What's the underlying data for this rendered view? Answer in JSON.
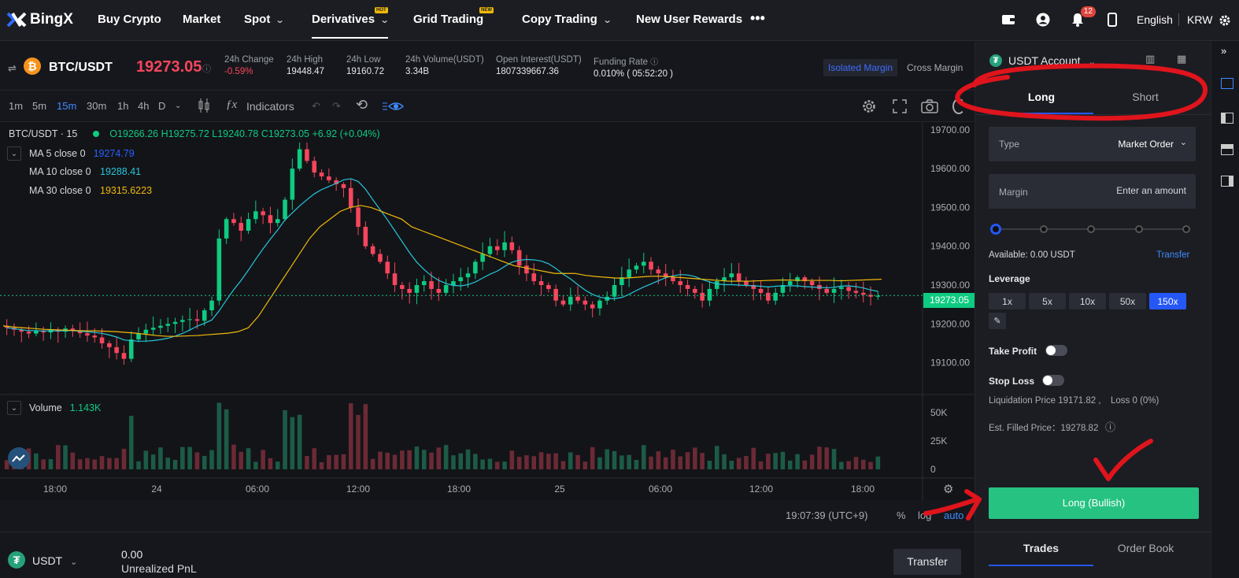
{
  "nav": {
    "brand": "BingX",
    "items": [
      {
        "label": "Buy Crypto"
      },
      {
        "label": "Market"
      },
      {
        "label": "Spot"
      },
      {
        "label": "Derivatives",
        "tag": "HOT"
      },
      {
        "label": "Grid Trading",
        "tag": "NEW"
      },
      {
        "label": "Copy Trading"
      },
      {
        "label": "New User Rewards"
      }
    ],
    "more": "•••",
    "notifications": "12",
    "language": "English",
    "currency": "KRW"
  },
  "ticker": {
    "pair": "BTC/USDT",
    "price": "19273.05",
    "stats": [
      {
        "label": "24h Change",
        "value": "-0.59%"
      },
      {
        "label": "24h High",
        "value": "19448.47"
      },
      {
        "label": "24h Low",
        "value": "19160.72"
      },
      {
        "label": "24h Volume(USDT)",
        "value": "3.34B"
      },
      {
        "label": "Open Interest(USDT)",
        "value": "1807339667.36"
      },
      {
        "label": "Funding Rate",
        "value": "0.010%  ( 05:52:20 )"
      }
    ],
    "margin_modes": [
      "Isolated Margin",
      "Cross Margin"
    ]
  },
  "toolbar": {
    "timeframes": [
      "1m",
      "5m",
      "15m",
      "30m",
      "1h",
      "4h",
      "D"
    ],
    "active_timeframe": "15m",
    "indicators": "Indicators"
  },
  "chart": {
    "header": "BTC/USDT · 15",
    "ohlc": {
      "o": "O19266.26",
      "h": "H19275.72",
      "l": "L19240.78",
      "c": "C19273.05",
      "chg": "+6.92 (+0.04%)"
    },
    "ma": [
      {
        "label": "MA 5 close 0",
        "value": "19274.79",
        "color": "#2962ff"
      },
      {
        "label": "MA 10 close 0",
        "value": "19288.41",
        "color": "#26c6da"
      },
      {
        "label": "MA 30 close 0",
        "value": "19315.6223",
        "color": "#f0b90b"
      }
    ],
    "price_label": "19273.05",
    "volume_label": "Volume",
    "volume_value": "1.143K",
    "time": "19:07:39 (UTC+9)",
    "scale_opts": [
      "%",
      "log",
      "auto"
    ]
  },
  "chart_data": {
    "type": "candlestick",
    "pair": "BTC/USDT",
    "interval": "15",
    "y_ticks": [
      19700,
      19600,
      19500,
      19400,
      19300,
      19200,
      19100
    ],
    "ylim": [
      19020,
      19720
    ],
    "x_ticks": [
      "18:00",
      "24",
      "06:00",
      "12:00",
      "18:00",
      "25",
      "06:00",
      "12:00",
      "18:00"
    ],
    "last_price": 19273.05,
    "close_series": [
      19190,
      19185,
      19180,
      19175,
      19182,
      19178,
      19185,
      19180,
      19188,
      19182,
      19176,
      19170,
      19165,
      19150,
      19140,
      19125,
      19110,
      19160,
      19175,
      19185,
      19190,
      19195,
      19200,
      19205,
      19210,
      19212,
      19208,
      19235,
      19260,
      19420,
      19470,
      19460,
      19440,
      19470,
      19490,
      19480,
      19460,
      19470,
      19520,
      19600,
      19650,
      19620,
      19590,
      19580,
      19570,
      19560,
      19550,
      19500,
      19450,
      19400,
      19380,
      19360,
      19330,
      19300,
      19290,
      19280,
      19300,
      19310,
      19290,
      19280,
      19300,
      19310,
      19320,
      19330,
      19360,
      19380,
      19400,
      19390,
      19410,
      19390,
      19350,
      19330,
      19310,
      19300,
      19290,
      19260,
      19250,
      19270,
      19260,
      19250,
      19240,
      19260,
      19270,
      19300,
      19320,
      19340,
      19350,
      19360,
      19340,
      19330,
      19320,
      19310,
      19300,
      19290,
      19280,
      19260,
      19290,
      19310,
      19320,
      19330,
      19310,
      19300,
      19290,
      19280,
      19260,
      19280,
      19300,
      19310,
      19320,
      19310,
      19300,
      19290,
      19280,
      19290,
      19295,
      19285,
      19280,
      19275,
      19270,
      19273
    ],
    "ma30_series": [
      19195,
      19192,
      19190,
      19188,
      19186,
      19185,
      19184,
      19183,
      19182,
      19182,
      19181,
      19180,
      19178,
      19176,
      19173,
      19170,
      19168,
      19168,
      19169,
      19170,
      19172,
      19174,
      19176,
      19180,
      19190,
      19220,
      19260,
      19300,
      19340,
      19380,
      19420,
      19450,
      19470,
      19490,
      19500,
      19505,
      19500,
      19490,
      19480,
      19470,
      19450,
      19440,
      19430,
      19420,
      19410,
      19400,
      19390,
      19380,
      19370,
      19360,
      19350,
      19345,
      19340,
      19335,
      19330,
      19330,
      19330,
      19325,
      19322,
      19320,
      19318,
      19318,
      19320,
      19322,
      19323,
      19322,
      19320,
      19318,
      19316,
      19314,
      19312,
      19310,
      19310,
      19310,
      19311,
      19312,
      19313,
      19313,
      19312,
      19312,
      19312,
      19312,
      19311,
      19312,
      19313,
      19314,
      19315
    ],
    "volume_ticks": [
      "50K",
      "25K",
      "0"
    ]
  },
  "panel": {
    "account": "USDT Account",
    "tabs": [
      "Long",
      "Short"
    ],
    "active_tab": "Long",
    "type_label": "Type",
    "type_value": "Market Order",
    "margin_label": "Margin",
    "margin_placeholder": "Enter an amount",
    "available": "Available: 0.00 USDT",
    "transfer": "Transfer",
    "leverage_label": "Leverage",
    "leverage_opts": [
      "1x",
      "5x",
      "10x",
      "50x",
      "150x"
    ],
    "leverage_selected": "150x",
    "take_profit": "Take Profit",
    "stop_loss": "Stop Loss",
    "liquidation": "Liquidation Price 19171.82 ,",
    "loss": "Loss 0 (0%)",
    "est_filled": "Est. Filled Price：19278.82",
    "long_button": "Long (Bullish)",
    "bottom_tabs": [
      "Trades",
      "Order Book"
    ]
  },
  "bottom": {
    "asset": "USDT",
    "pnl_value": "0.00",
    "pnl_label": "Unrealized PnL",
    "transfer": "Transfer"
  },
  "colors": {
    "up": "#0ecb81",
    "down": "#f6465d",
    "accent": "#2457f5",
    "annotation": "#e0141c"
  }
}
